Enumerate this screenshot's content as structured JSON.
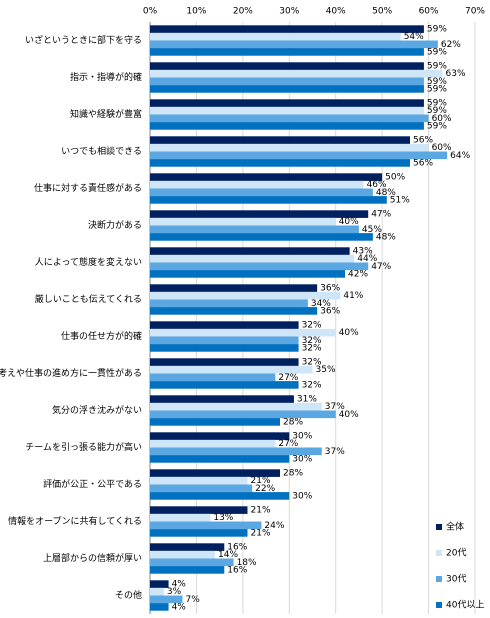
{
  "chart_data": {
    "type": "hbar",
    "categories": [
      "いざというときに部下を守る",
      "指示・指導が的確",
      "知識や経験が豊富",
      "いつでも相談できる",
      "仕事に対する責任感がある",
      "決断力がある",
      "人によって態度を変えない",
      "厳しいことも伝えてくれる",
      "仕事の任せ方が的確",
      "考えや仕事の進め方に一貫性がある",
      "気分の浮き沈みがない",
      "チームを引っ張る能力が高い",
      "評価が公正・公平である",
      "情報をオープンに共有してくれる",
      "上層部からの信頼が厚い",
      "その他"
    ],
    "series": [
      {
        "name": "全体",
        "color": "#002060",
        "values": [
          59,
          59,
          59,
          56,
          50,
          47,
          43,
          36,
          32,
          32,
          31,
          30,
          28,
          21,
          16,
          4
        ],
        "value_labels": [
          "59%",
          "59%",
          "59%",
          "56%",
          "50%",
          "47%",
          "43%",
          "36%",
          "32%",
          "32%",
          "31%",
          "30%",
          "28%",
          "21%",
          "16%",
          "4%"
        ]
      },
      {
        "name": "20代",
        "color": "#cfe6f8",
        "values": [
          54,
          63,
          59,
          60,
          46,
          40,
          44,
          41,
          40,
          35,
          37,
          27,
          21,
          13,
          14,
          3
        ],
        "value_labels": [
          "54%",
          "63%",
          "59%",
          "60%",
          "46%",
          "40%",
          "44%",
          "41%",
          "40%",
          "35%",
          "37%",
          "27%",
          "21%",
          "13%",
          "14%",
          "3%"
        ]
      },
      {
        "name": "30代",
        "color": "#5aa7e2",
        "values": [
          62,
          59,
          60,
          64,
          48,
          45,
          47,
          34,
          32,
          27,
          40,
          37,
          22,
          24,
          18,
          7
        ],
        "value_labels": [
          "62%",
          "59%",
          "60%",
          "64%",
          "48%",
          "45%",
          "47%",
          "34%",
          "32%",
          "27%",
          "40%",
          "37%",
          "22%",
          "24%",
          "18%",
          "7%"
        ]
      },
      {
        "name": "40代以上",
        "color": "#0070c0",
        "values": [
          59,
          59,
          59,
          56,
          51,
          48,
          42,
          36,
          32,
          32,
          28,
          30,
          30,
          21,
          16,
          4
        ],
        "value_labels": [
          "59%",
          "59%",
          "59%",
          "56%",
          "51%",
          "48%",
          "42%",
          "36%",
          "32%",
          "32%",
          "28%",
          "30%",
          "30%",
          "21%",
          "16%",
          "4%"
        ]
      }
    ],
    "xlim": [
      0,
      70
    ],
    "xticks": [
      {
        "value": 0,
        "label": "0%"
      },
      {
        "value": 10,
        "label": "10%"
      },
      {
        "value": 20,
        "label": "20%"
      },
      {
        "value": 30,
        "label": "30%"
      },
      {
        "value": 40,
        "label": "40%"
      },
      {
        "value": 50,
        "label": "50%"
      },
      {
        "value": 60,
        "label": "60%"
      },
      {
        "value": 70,
        "label": "70%"
      }
    ],
    "grid": true,
    "legend": "right"
  }
}
